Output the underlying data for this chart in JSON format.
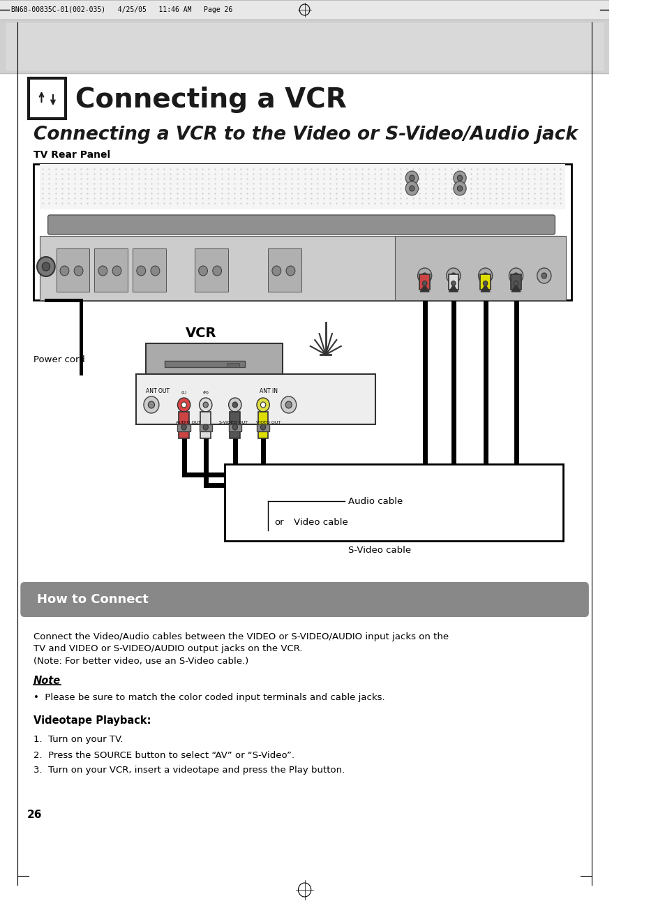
{
  "page_bg": "#ffffff",
  "header_text": "BN68-00835C-01(002-035)   4/25/05   11:46 AM   Page 26",
  "main_title": "Connecting a VCR",
  "sub_title": "Connecting a VCR to the Video or S-Video/Audio jack",
  "tv_rear_label": "TV Rear Panel",
  "power_cord_label": "Power cord",
  "vcr_label": "VCR",
  "audio_cable_label": "Audio cable",
  "video_cable_label": "Video cable",
  "svideo_cable_label": "S-Video cable",
  "or_label": "or",
  "how_to_connect_bg": "#888888",
  "how_to_connect_title": "How to Connect",
  "how_to_connect_title_color": "#ffffff",
  "body_line1": "Connect the Video/Audio cables between the VIDEO or S-VIDEO/AUDIO input jacks on the",
  "body_line2": "TV and VIDEO or S-VIDEO/AUDIO output jacks on the VCR.",
  "body_line3": "(Note: For better video, use an S-Video cable.)",
  "note_label": "Note",
  "note_text": "•  Please be sure to match the color coded input terminals and cable jacks.",
  "videotape_label": "Videotape Playback:",
  "step1": "1.  Turn on your TV.",
  "step2": "2.  Press the SOURCE button to select “AV” or “S-Video”.",
  "step3": "3.  Turn on your VCR, insert a videotape and press the Play button.",
  "page_number": "26"
}
